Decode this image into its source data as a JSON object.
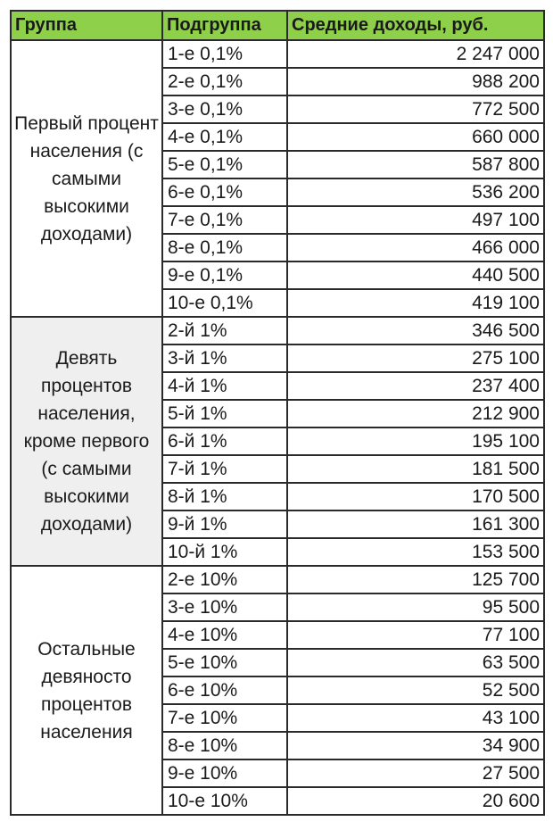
{
  "headers": {
    "group": "Группа",
    "subgroup": "Подгруппа",
    "income": "Средние доходы, руб."
  },
  "groups": [
    {
      "label": "Первый процент населения (с самыми высокими доходами)",
      "shaded": false,
      "rows": [
        {
          "sub": "1-е 0,1%",
          "val": "2 247 000"
        },
        {
          "sub": "2-е 0,1%",
          "val": "988 200"
        },
        {
          "sub": "3-е 0,1%",
          "val": "772 500"
        },
        {
          "sub": "4-е 0,1%",
          "val": "660 000"
        },
        {
          "sub": "5-е 0,1%",
          "val": "587 800"
        },
        {
          "sub": "6-е 0,1%",
          "val": "536 200"
        },
        {
          "sub": "7-е 0,1%",
          "val": "497 100"
        },
        {
          "sub": "8-е 0,1%",
          "val": "466 000"
        },
        {
          "sub": "9-е 0,1%",
          "val": "440 500"
        },
        {
          "sub": "10-е 0,1%",
          "val": "419 100"
        }
      ]
    },
    {
      "label": "Девять процентов населения, кроме первого (с самыми высокими доходами)",
      "shaded": true,
      "rows": [
        {
          "sub": "2-й 1%",
          "val": "346 500"
        },
        {
          "sub": "3-й 1%",
          "val": "275 100"
        },
        {
          "sub": "4-й 1%",
          "val": "237 400"
        },
        {
          "sub": "5-й 1%",
          "val": "212 900"
        },
        {
          "sub": "6-й 1%",
          "val": "195 100"
        },
        {
          "sub": "7-й 1%",
          "val": "181 500"
        },
        {
          "sub": "8-й 1%",
          "val": "170 500"
        },
        {
          "sub": "9-й 1%",
          "val": "161 300"
        },
        {
          "sub": "10-й 1%",
          "val": "153 500"
        }
      ]
    },
    {
      "label": "Остальные девяносто процентов населения",
      "shaded": false,
      "rows": [
        {
          "sub": "2-е 10%",
          "val": "125 700"
        },
        {
          "sub": "3-е 10%",
          "val": "95 500"
        },
        {
          "sub": "4-е 10%",
          "val": "77 100"
        },
        {
          "sub": "5-е 10%",
          "val": "63 500"
        },
        {
          "sub": "6-е 10%",
          "val": "52 500"
        },
        {
          "sub": "7-е 10%",
          "val": "43 100"
        },
        {
          "sub": "8-е 10%",
          "val": "34 900"
        },
        {
          "sub": "9-е 10%",
          "val": "27 500"
        },
        {
          "sub": "10-е 10%",
          "val": "20 600"
        }
      ]
    }
  ]
}
